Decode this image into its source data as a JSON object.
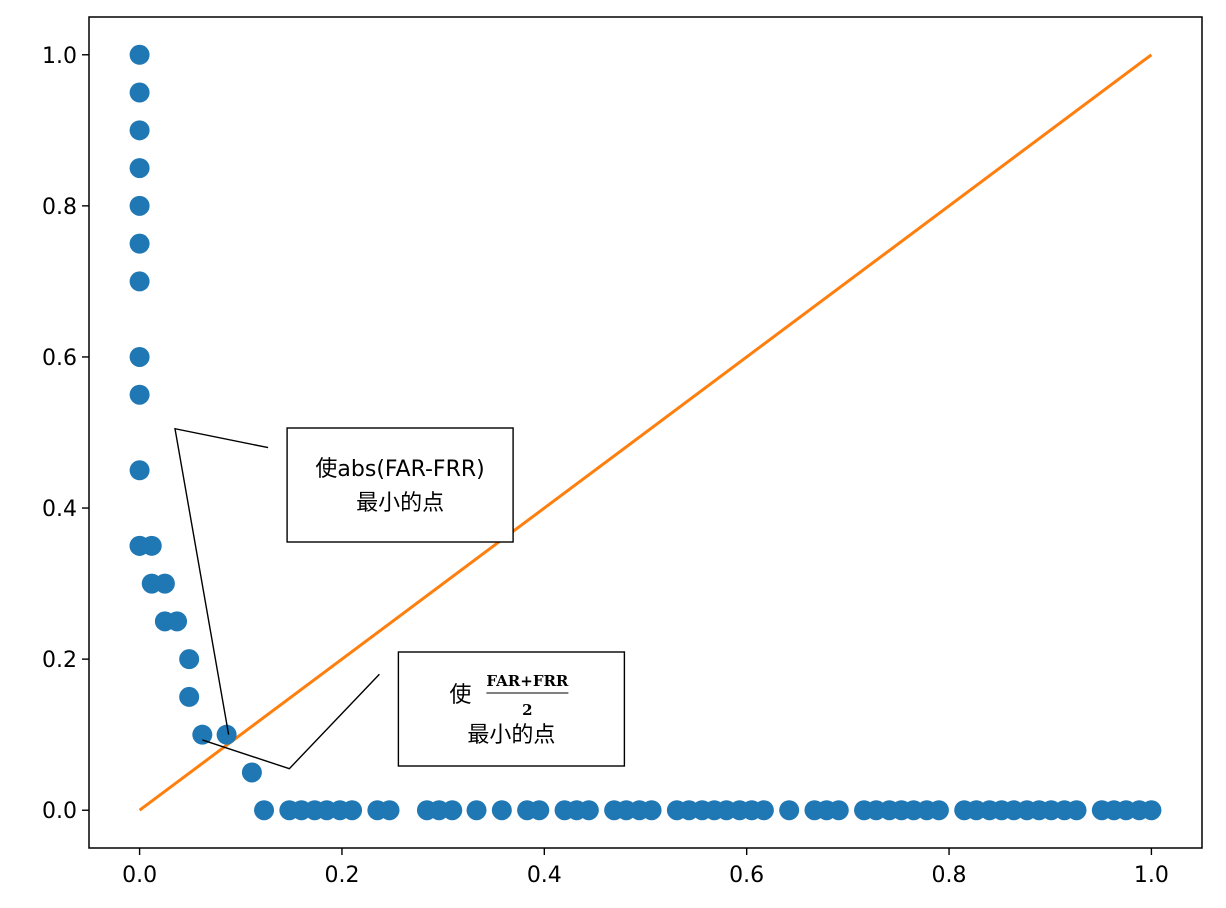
{
  "chart_data": {
    "type": "scatter",
    "xlim": [
      -0.05,
      1.05
    ],
    "ylim": [
      -0.05,
      1.05
    ],
    "x_ticks": [
      0.0,
      0.2,
      0.4,
      0.6,
      0.8,
      1.0
    ],
    "x_tick_labels": [
      "0.0",
      "0.2",
      "0.4",
      "0.6",
      "0.8",
      "1.0"
    ],
    "y_ticks": [
      0.0,
      0.2,
      0.4,
      0.6,
      0.8,
      1.0
    ],
    "y_tick_labels": [
      "0.0",
      "0.2",
      "0.4",
      "0.6",
      "0.8",
      "1.0"
    ],
    "grid": false,
    "series": [
      {
        "type": "scatter",
        "color": "#1f77b4",
        "x": [
          0.0,
          0.0,
          0.0,
          0.0,
          0.0,
          0.0,
          0.0,
          0.0,
          0.0,
          0.0,
          0.0,
          0.0,
          0.012,
          0.012,
          0.025,
          0.025,
          0.037,
          0.049,
          0.049,
          0.062,
          0.086,
          0.111,
          0.123,
          0.148,
          0.16,
          0.173,
          0.185,
          0.198,
          0.21,
          0.235,
          0.247,
          0.284,
          0.296,
          0.309,
          0.333,
          0.358,
          0.383,
          0.395,
          0.42,
          0.432,
          0.444,
          0.469,
          0.481,
          0.494,
          0.506,
          0.531,
          0.543,
          0.556,
          0.568,
          0.58,
          0.593,
          0.605,
          0.617,
          0.642,
          0.667,
          0.679,
          0.691,
          0.716,
          0.728,
          0.741,
          0.753,
          0.765,
          0.778,
          0.79,
          0.815,
          0.827,
          0.84,
          0.852,
          0.864,
          0.877,
          0.889,
          0.901,
          0.914,
          0.926,
          0.951,
          0.963,
          0.975,
          0.988,
          1.0
        ],
        "y": [
          1.0,
          0.95,
          0.9,
          0.85,
          0.8,
          0.75,
          0.7,
          0.6,
          0.55,
          0.45,
          0.35,
          0.35,
          0.35,
          0.3,
          0.3,
          0.25,
          0.25,
          0.2,
          0.15,
          0.1,
          0.1,
          0.05,
          0.0,
          0.0,
          0.0,
          0.0,
          0.0,
          0.0,
          0.0,
          0.0,
          0.0,
          0.0,
          0.0,
          0.0,
          0.0,
          0.0,
          0.0,
          0.0,
          0.0,
          0.0,
          0.0,
          0.0,
          0.0,
          0.0,
          0.0,
          0.0,
          0.0,
          0.0,
          0.0,
          0.0,
          0.0,
          0.0,
          0.0,
          0.0,
          0.0,
          0.0,
          0.0,
          0.0,
          0.0,
          0.0,
          0.0,
          0.0,
          0.0,
          0.0,
          0.0,
          0.0,
          0.0,
          0.0,
          0.0,
          0.0,
          0.0,
          0.0,
          0.0,
          0.0,
          0.0,
          0.0,
          0.0,
          0.0,
          0.0
        ]
      },
      {
        "type": "line",
        "color": "#ff7f0e",
        "x": [
          0.0,
          1.0
        ],
        "y": [
          0.0,
          1.0
        ]
      }
    ],
    "annotations": [
      {
        "lines": [
          "使abs(FAR-FRR)",
          "最小的点"
        ],
        "arrow_tip": [
          0.088,
          0.1
        ],
        "elbow": [
          0.035,
          0.505
        ],
        "box_anchor": [
          0.127,
          0.48
        ]
      },
      {
        "prefix": "使",
        "numerator": "FAR+FRR",
        "denominator": "2",
        "line2": "最小的点",
        "arrow_tip": [
          0.062,
          0.093
        ],
        "elbow": [
          0.148,
          0.055
        ],
        "box_anchor": [
          0.237,
          0.18
        ]
      }
    ]
  }
}
